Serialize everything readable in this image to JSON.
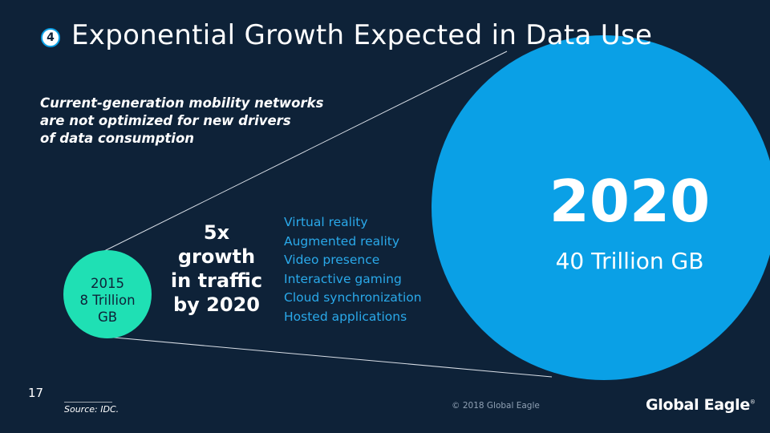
{
  "header": {
    "section_number": "4",
    "title": "Exponential Growth Expected in Data Use"
  },
  "subtitle_lines": [
    "Current-generation mobility networks",
    "are not optimized for new drivers",
    "of data consumption"
  ],
  "growth_callout": [
    "5x",
    "growth",
    "in traffic",
    "by 2020"
  ],
  "drivers": [
    "Virtual reality",
    "Augmented reality",
    "Video presence",
    "Interactive gaming",
    "Cloud synchronization",
    "Hosted applications"
  ],
  "circle_2015": {
    "year": "2015",
    "amount_line1": "8 Trillion",
    "amount_line2": "GB"
  },
  "circle_2020": {
    "year": "2020",
    "amount": "40 Trillion GB"
  },
  "footer": {
    "page_number": "17",
    "source": "Source: IDC.",
    "copyright": "© 2018 Global Eagle",
    "logo_text": "Global Eagle",
    "logo_mark": "®"
  },
  "colors": {
    "background": "#0e2238",
    "accent_blue": "#0aa0e6",
    "accent_green": "#1fe0b4",
    "driver_text": "#2aa9ea"
  }
}
